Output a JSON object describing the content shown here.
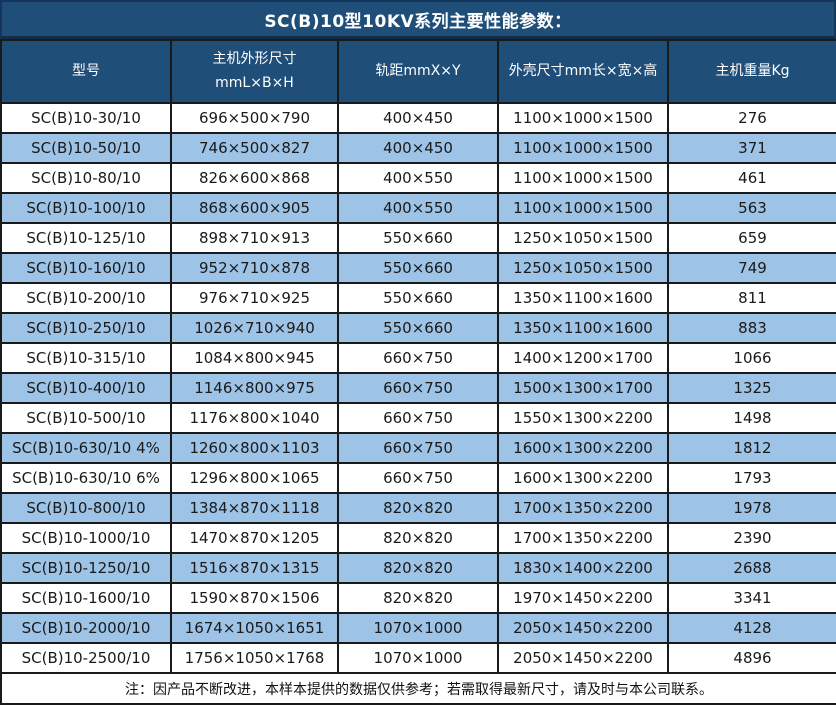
{
  "chart_data": {
    "type": "table",
    "title": "SC(B)10型10KV系列主要性能参数：",
    "columns": [
      {
        "label": "型号"
      },
      {
        "label": "主机外形尺寸",
        "sub": "mmL×B×H"
      },
      {
        "label": "轨距mmX×Y"
      },
      {
        "label": "外壳尺寸mm长×宽×高"
      },
      {
        "label": "主机重量Kg"
      }
    ],
    "rows": [
      [
        "SC(B)10-30/10",
        "696×500×790",
        "400×450",
        "1100×1000×1500",
        "276"
      ],
      [
        "SC(B)10-50/10",
        "746×500×827",
        "400×450",
        "1100×1000×1500",
        "371"
      ],
      [
        "SC(B)10-80/10",
        "826×600×868",
        "400×550",
        "1100×1000×1500",
        "461"
      ],
      [
        "SC(B)10-100/10",
        "868×600×905",
        "400×550",
        "1100×1000×1500",
        "563"
      ],
      [
        "SC(B)10-125/10",
        "898×710×913",
        "550×660",
        "1250×1050×1500",
        "659"
      ],
      [
        "SC(B)10-160/10",
        "952×710×878",
        "550×660",
        "1250×1050×1500",
        "749"
      ],
      [
        "SC(B)10-200/10",
        "976×710×925",
        "550×660",
        "1350×1100×1600",
        "811"
      ],
      [
        "SC(B)10-250/10",
        "1026×710×940",
        "550×660",
        "1350×1100×1600",
        "883"
      ],
      [
        "SC(B)10-315/10",
        "1084×800×945",
        "660×750",
        "1400×1200×1700",
        "1066"
      ],
      [
        "SC(B)10-400/10",
        "1146×800×975",
        "660×750",
        "1500×1300×1700",
        "1325"
      ],
      [
        "SC(B)10-500/10",
        "1176×800×1040",
        "660×750",
        "1550×1300×2200",
        "1498"
      ],
      [
        "SC(B)10-630/10 4%",
        "1260×800×1103",
        "660×750",
        "1600×1300×2200",
        "1812"
      ],
      [
        "SC(B)10-630/10 6%",
        "1296×800×1065",
        "660×750",
        "1600×1300×2200",
        "1793"
      ],
      [
        "SC(B)10-800/10",
        "1384×870×1118",
        "820×820",
        "1700×1350×2200",
        "1978"
      ],
      [
        "SC(B)10-1000/10",
        "1470×870×1205",
        "820×820",
        "1700×1350×2200",
        "2390"
      ],
      [
        "SC(B)10-1250/10",
        "1516×870×1315",
        "820×820",
        "1830×1400×2200",
        "2688"
      ],
      [
        "SC(B)10-1600/10",
        "1590×870×1506",
        "820×820",
        "1970×1450×2200",
        "3341"
      ],
      [
        "SC(B)10-2000/10",
        "1674×1050×1651",
        "1070×1000",
        "2050×1450×2200",
        "4128"
      ],
      [
        "SC(B)10-2500/10",
        "1756×1050×1768",
        "1070×1000",
        "2050×1450×2200",
        "4896"
      ]
    ],
    "note": "注：因产品不断改进，本样本提供的数据仅供参考；若需取得最新尺寸，请及时与本公司联系。",
    "layout": {
      "grid": true,
      "striped": true,
      "stripe_pattern": "even rows light blue"
    }
  },
  "colors": {
    "title_header_bg": "#1F4E79",
    "header_text": "#FFFFFF",
    "row_bg": "#FFFFFF",
    "row_alt_bg": "#9DC3E6",
    "border": "#1A1A1A",
    "body_text": "#1A1A1A"
  }
}
